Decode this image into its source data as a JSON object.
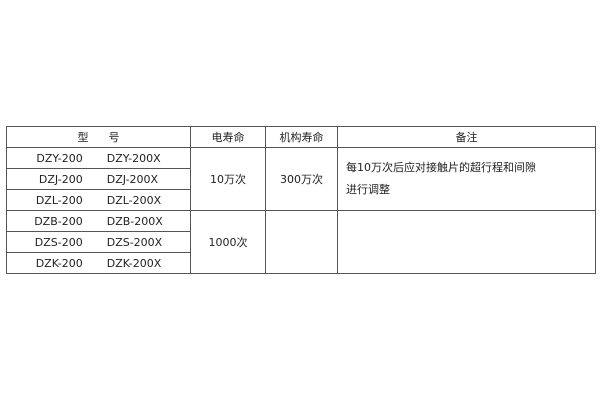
{
  "header": {
    "model_a": "型",
    "model_b": "号",
    "electrical_life": "电寿命",
    "mechanical_life": "机构寿命",
    "remarks": "备注"
  },
  "rows": [
    {
      "model": "DZY-200",
      "model_x": "DZY-200X"
    },
    {
      "model": "DZJ-200",
      "model_x": "DZJ-200X"
    },
    {
      "model": "DZL-200",
      "model_x": "DZL-200X"
    },
    {
      "model": "DZB-200",
      "model_x": "DZB-200X"
    },
    {
      "model": "DZS-200",
      "model_x": "DZS-200X"
    },
    {
      "model": "DZK-200",
      "model_x": "DZK-200X"
    }
  ],
  "groups": [
    {
      "electrical_life": "10万次",
      "mechanical_life": "300万次",
      "remark_line1": "每10万次后应对接触片的超行程和间隙",
      "remark_line2": "进行调整"
    },
    {
      "electrical_life": "1000次",
      "mechanical_life": "",
      "remark_line1": "",
      "remark_line2": ""
    }
  ]
}
